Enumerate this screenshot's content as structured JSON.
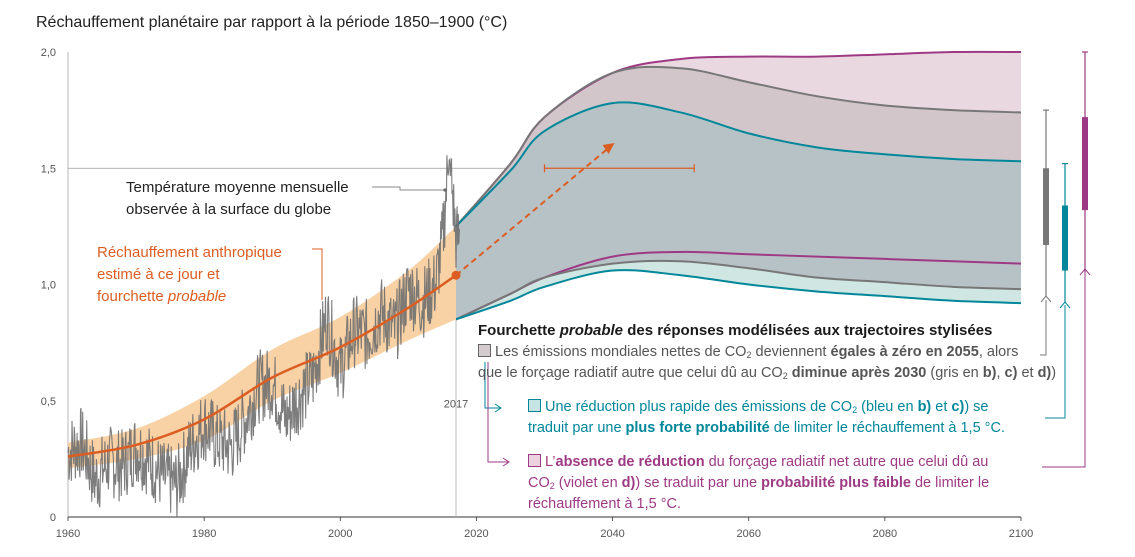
{
  "chart_data": {
    "type": "area",
    "title": "Réchauffement planétaire par rapport à la période 1850–1900 (°C)",
    "xlim": [
      1960,
      2100
    ],
    "ylim": [
      0,
      2.0
    ],
    "x_ticks": [
      "1960",
      "1980",
      "2000",
      "2020",
      "2040",
      "2060",
      "2080",
      "2100"
    ],
    "y_ticks": [
      "0",
      "0,5",
      "1,0",
      "1,5",
      "2,0"
    ],
    "grid": "horizontal at 1,5",
    "marker_year_label": "2017",
    "anthropogenic_warming": {
      "x": [
        1960,
        1970,
        1980,
        1990,
        2000,
        2010,
        2017
      ],
      "central": [
        0.26,
        0.31,
        0.42,
        0.6,
        0.73,
        0.9,
        1.04
      ],
      "lower": [
        0.21,
        0.25,
        0.33,
        0.5,
        0.62,
        0.76,
        0.85
      ],
      "upper": [
        0.32,
        0.38,
        0.52,
        0.72,
        0.86,
        1.06,
        1.25
      ]
    },
    "observed_monthly_temperature": {
      "x": [
        1960,
        1962,
        1964,
        1966,
        1968,
        1970,
        1972,
        1974,
        1976,
        1978,
        1980,
        1982,
        1984,
        1986,
        1988,
        1990,
        1992,
        1994,
        1996,
        1998,
        2000,
        2002,
        2004,
        2006,
        2008,
        2010,
        2012,
        2014,
        2015,
        2016,
        2017
      ],
      "values": [
        0.28,
        0.32,
        0.16,
        0.24,
        0.22,
        0.3,
        0.24,
        0.17,
        0.14,
        0.3,
        0.4,
        0.33,
        0.3,
        0.42,
        0.56,
        0.58,
        0.42,
        0.52,
        0.6,
        0.86,
        0.63,
        0.8,
        0.78,
        0.88,
        0.8,
        0.98,
        0.92,
        1.0,
        1.18,
        1.57,
        1.2
      ]
    },
    "series": [
      {
        "color": "#9e3a84",
        "x": [
          2017,
          2025,
          2030,
          2040,
          2050,
          2060,
          2070,
          2080,
          2090,
          2100
        ],
        "upper": [
          1.25,
          1.52,
          1.72,
          1.91,
          1.97,
          1.98,
          1.98,
          1.99,
          2.0,
          2.0
        ],
        "lower": [
          0.85,
          0.96,
          1.03,
          1.12,
          1.14,
          1.13,
          1.12,
          1.11,
          1.1,
          1.09
        ]
      },
      {
        "color": "#777777",
        "x": [
          2017,
          2025,
          2030,
          2040,
          2050,
          2060,
          2070,
          2080,
          2090,
          2100
        ],
        "upper": [
          1.25,
          1.52,
          1.72,
          1.91,
          1.93,
          1.87,
          1.81,
          1.77,
          1.75,
          1.74
        ],
        "lower": [
          0.85,
          0.96,
          1.03,
          1.09,
          1.1,
          1.07,
          1.03,
          1.01,
          0.99,
          0.98
        ]
      },
      {
        "color": "#00879a",
        "x": [
          2017,
          2025,
          2030,
          2040,
          2050,
          2060,
          2070,
          2080,
          2090,
          2100
        ],
        "upper": [
          1.25,
          1.49,
          1.66,
          1.78,
          1.74,
          1.65,
          1.59,
          1.56,
          1.54,
          1.53
        ],
        "lower": [
          0.85,
          0.93,
          0.99,
          1.06,
          1.04,
          1.0,
          0.97,
          0.95,
          0.93,
          0.92
        ]
      }
    ],
    "projection_2040": {
      "x_from": 2017,
      "y_from": 1.04,
      "x_to": 2040,
      "y_to": 1.6,
      "range_x": [
        2030,
        2052
      ],
      "range_y": 1.5
    },
    "ranges_2100": [
      {
        "color": "#777777",
        "whisker": [
          0.95,
          1.75
        ],
        "box": [
          1.17,
          1.5
        ]
      },
      {
        "color": "#00879a",
        "whisker": [
          0.92,
          1.52
        ],
        "box": [
          1.06,
          1.34
        ]
      },
      {
        "color": "#9e3a84",
        "whisker": [
          1.05,
          2.0
        ],
        "box": [
          1.32,
          1.72
        ]
      }
    ],
    "annotations": {
      "observed": [
        "Température moyenne mensuelle",
        "observée à la surface du globe"
      ],
      "anthropogenic": [
        "Réchauffement anthropique",
        "estimé à ce jour et"
      ],
      "anthropogenic_last": "fourchette ",
      "anthropogenic_italic": "probable"
    }
  },
  "legend": {
    "header": "Fourchette ",
    "header_italic": "probable",
    "header_rest": " des réponses modélisées aux trajectoires stylisées",
    "gray": {
      "l1_a": "Les émissions mondiales nettes de CO",
      "sub": "2",
      "l1_b": " deviennent ",
      "l1_bold": "égales à zéro en 2055",
      "l1_c": ", alors",
      "l2_a": "que le forçage radiatif autre que celui dû au CO",
      "l2_b": " ",
      "l2_bold": "diminue après 2030",
      "l2_c": " (gris en ",
      "l2_d": "b)",
      "l2_e": ", ",
      "l2_f": "c)",
      "l2_g": " et ",
      "l2_h": "d)",
      "l2_i": ")"
    },
    "blue": {
      "l1_a": "Une réduction plus rapide des émissions de CO",
      "l1_b": " (bleu en ",
      "l1_c": "b)",
      "l1_d": " et ",
      "l1_e": "c)",
      "l1_f": ") se",
      "l2_a": "traduit par une ",
      "l2_bold": "plus forte probabilité",
      "l2_b": " de limiter le réchauffement à 1,5 °C."
    },
    "purple": {
      "l1_a": "L’",
      "l1_bold": "absence de réduction",
      "l1_b": " du forçage radiatif net autre que celui dû au",
      "l2_a": "CO",
      "l2_b": " (violet en ",
      "l2_c": "d)",
      "l2_d": ") se traduit par une ",
      "l2_bold": "probabilité plus faible",
      "l2_e": " de limiter le réchauffement à 1,5 °C.",
      "l3": "réchauffement à 1,5 °C."
    }
  }
}
